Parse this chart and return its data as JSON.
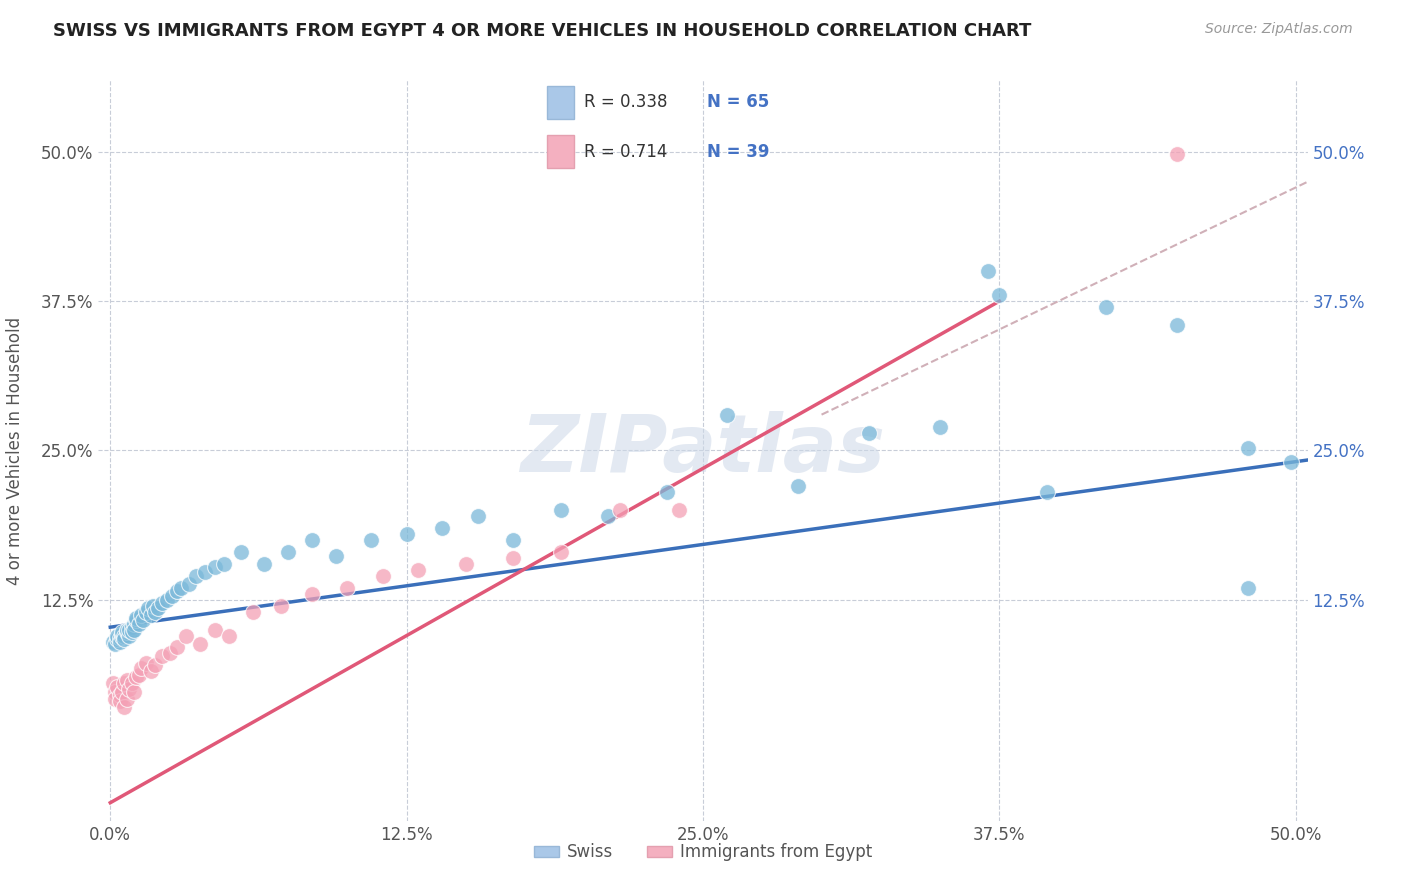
{
  "title": "SWISS VS IMMIGRANTS FROM EGYPT 4 OR MORE VEHICLES IN HOUSEHOLD CORRELATION CHART",
  "source": "Source: ZipAtlas.com",
  "ylabel": "4 or more Vehicles in Household",
  "xlim": [
    -0.005,
    0.505
  ],
  "ylim": [
    -0.06,
    0.56
  ],
  "xtick_vals": [
    0.0,
    0.125,
    0.25,
    0.375,
    0.5
  ],
  "ytick_vals": [
    0.125,
    0.25,
    0.375,
    0.5
  ],
  "swiss_color": "#7ab8d9",
  "egypt_color": "#f4a0b5",
  "swiss_line_color": "#3a6fba",
  "egypt_line_color": "#e05878",
  "dash_color": "#d0b0b8",
  "legend_swiss_r": "R = 0.338",
  "legend_swiss_n": "N = 65",
  "legend_egypt_r": "R = 0.714",
  "legend_egypt_n": "N = 39",
  "swiss_x": [
    0.001,
    0.002,
    0.003,
    0.003,
    0.004,
    0.004,
    0.005,
    0.005,
    0.005,
    0.006,
    0.006,
    0.007,
    0.007,
    0.008,
    0.008,
    0.009,
    0.009,
    0.01,
    0.01,
    0.011,
    0.011,
    0.012,
    0.013,
    0.014,
    0.015,
    0.016,
    0.017,
    0.018,
    0.019,
    0.02,
    0.022,
    0.024,
    0.026,
    0.028,
    0.03,
    0.033,
    0.036,
    0.04,
    0.044,
    0.048,
    0.055,
    0.065,
    0.075,
    0.085,
    0.095,
    0.11,
    0.125,
    0.14,
    0.155,
    0.17,
    0.19,
    0.21,
    0.235,
    0.26,
    0.29,
    0.32,
    0.35,
    0.375,
    0.395,
    0.42,
    0.45,
    0.48,
    0.498,
    0.37,
    0.48
  ],
  "swiss_y": [
    0.09,
    0.088,
    0.092,
    0.095,
    0.093,
    0.09,
    0.094,
    0.096,
    0.098,
    0.095,
    0.092,
    0.098,
    0.1,
    0.095,
    0.1,
    0.102,
    0.098,
    0.105,
    0.1,
    0.108,
    0.11,
    0.105,
    0.112,
    0.108,
    0.115,
    0.118,
    0.112,
    0.12,
    0.115,
    0.118,
    0.122,
    0.125,
    0.128,
    0.132,
    0.135,
    0.138,
    0.145,
    0.148,
    0.152,
    0.155,
    0.165,
    0.155,
    0.165,
    0.175,
    0.162,
    0.175,
    0.18,
    0.185,
    0.195,
    0.175,
    0.2,
    0.195,
    0.215,
    0.28,
    0.22,
    0.265,
    0.27,
    0.38,
    0.215,
    0.37,
    0.355,
    0.252,
    0.24,
    0.4,
    0.135
  ],
  "egypt_x": [
    0.001,
    0.002,
    0.002,
    0.003,
    0.004,
    0.004,
    0.005,
    0.006,
    0.006,
    0.007,
    0.007,
    0.008,
    0.009,
    0.01,
    0.011,
    0.012,
    0.013,
    0.015,
    0.017,
    0.019,
    0.022,
    0.025,
    0.028,
    0.032,
    0.038,
    0.044,
    0.05,
    0.06,
    0.072,
    0.085,
    0.1,
    0.115,
    0.13,
    0.15,
    0.17,
    0.19,
    0.215,
    0.24,
    0.45
  ],
  "egypt_y": [
    0.055,
    0.048,
    0.042,
    0.052,
    0.045,
    0.04,
    0.048,
    0.055,
    0.035,
    0.058,
    0.042,
    0.05,
    0.055,
    0.048,
    0.06,
    0.062,
    0.068,
    0.072,
    0.065,
    0.07,
    0.078,
    0.08,
    0.085,
    0.095,
    0.088,
    0.1,
    0.095,
    0.115,
    0.12,
    0.13,
    0.135,
    0.145,
    0.15,
    0.155,
    0.16,
    0.165,
    0.2,
    0.2,
    0.498
  ],
  "swiss_trend_x": [
    0.0,
    0.505
  ],
  "swiss_trend_y": [
    0.102,
    0.242
  ],
  "egypt_trend_x": [
    0.0,
    0.375
  ],
  "egypt_trend_y": [
    -0.045,
    0.375
  ],
  "dash_trend_x": [
    0.3,
    0.505
  ],
  "dash_trend_y": [
    0.28,
    0.475
  ]
}
